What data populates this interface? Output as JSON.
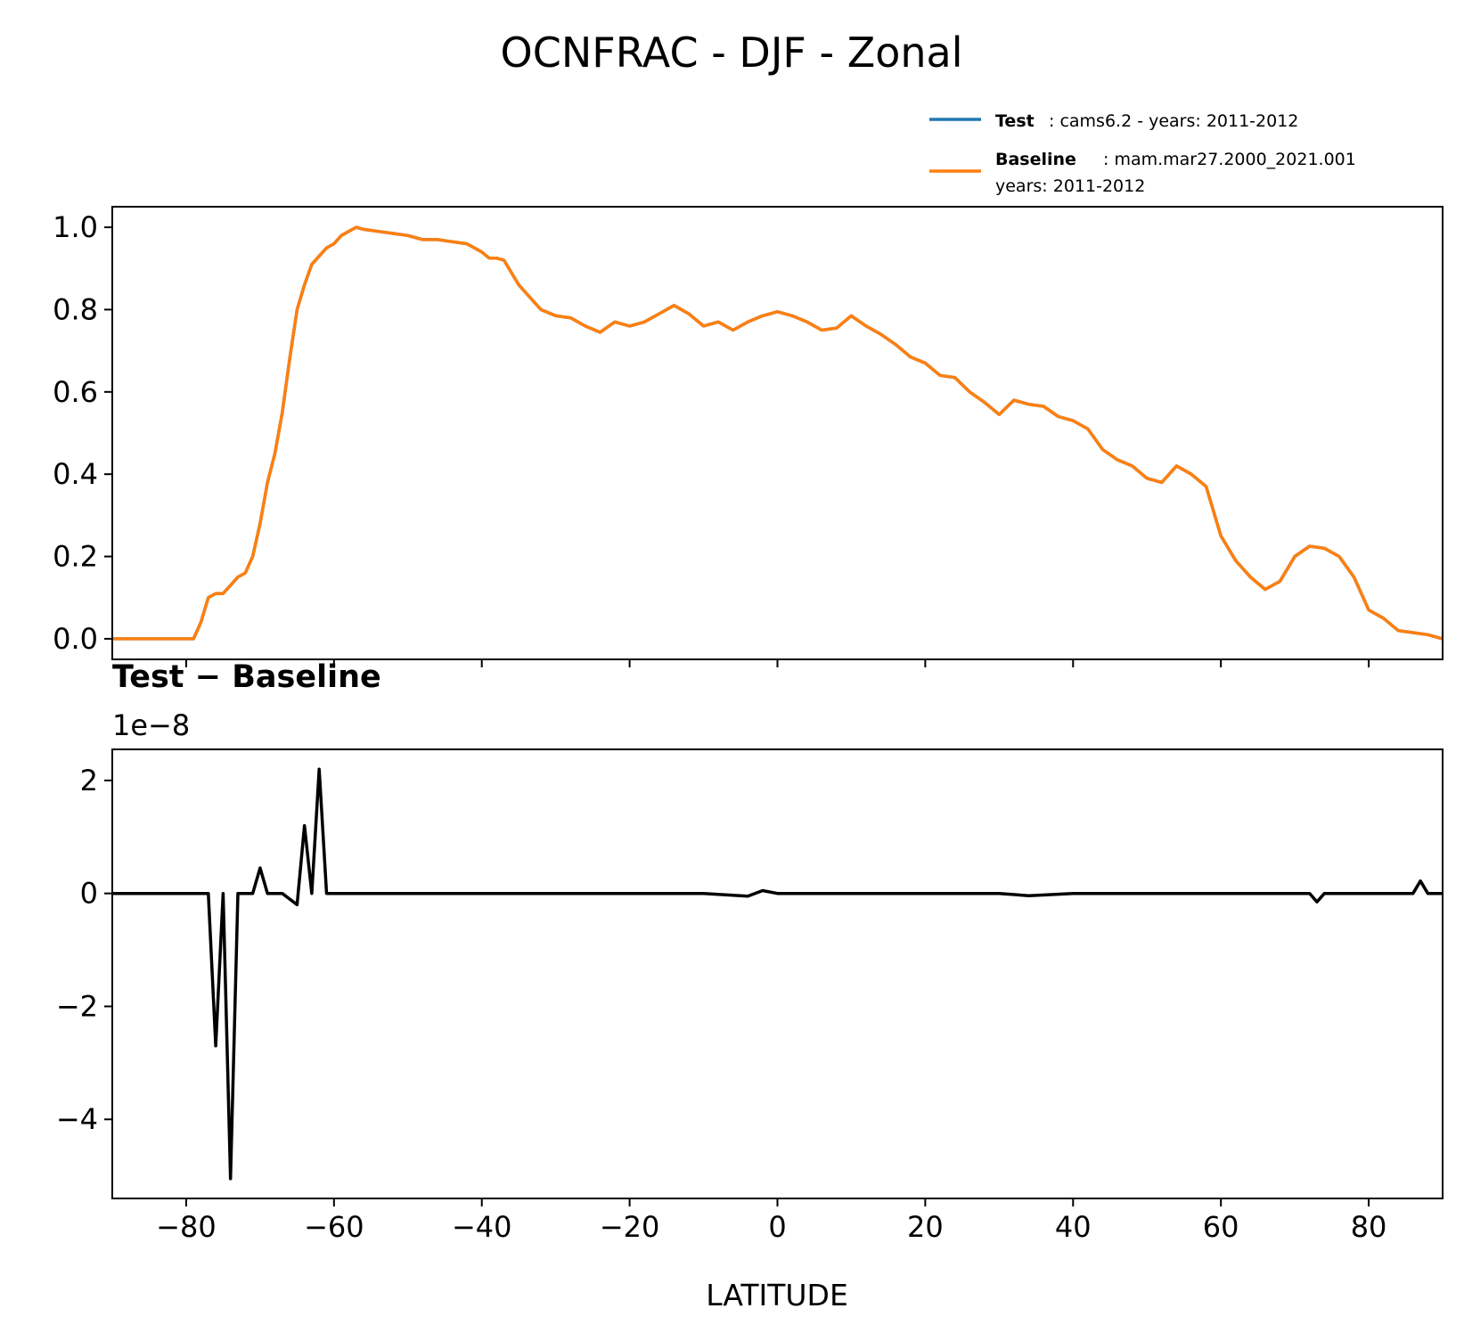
{
  "title": "OCNFRAC - DJF - Zonal",
  "legend": {
    "test": {
      "label": "Test",
      "text": ": cams6.2 - years: 2011-2012",
      "color": "#1f77b4"
    },
    "baseline": {
      "label": "Baseline",
      "text": ": mam.mar27.2000_2021.001",
      "text2": "years: 2011-2012",
      "color": "#ff7f0e"
    }
  },
  "chart_data": [
    {
      "type": "line",
      "title": "",
      "xlabel": "",
      "ylabel": "",
      "xlim": [
        -90,
        90
      ],
      "ylim": [
        -0.05,
        1.05
      ],
      "yticks": [
        0.0,
        0.2,
        0.4,
        0.6,
        0.8,
        1.0
      ],
      "ytick_labels": [
        "0.0",
        "0.2",
        "0.4",
        "0.6",
        "0.8",
        "1.0"
      ],
      "series": [
        {
          "name": "Test",
          "color": "#1f77b4",
          "x": [
            -90,
            -79,
            -78,
            -77,
            -76,
            -75,
            -74,
            -73,
            -72,
            -71,
            -70,
            -69,
            -68,
            -67,
            -66,
            -65,
            -64,
            -63,
            -62,
            -61,
            -60,
            -59,
            -58,
            -57,
            -56,
            -54,
            -52,
            -50,
            -48,
            -46,
            -44,
            -42,
            -40,
            -39,
            -38,
            -37,
            -36,
            -35,
            -34,
            -32,
            -30,
            -28,
            -26,
            -24,
            -22,
            -20,
            -18,
            -16,
            -14,
            -12,
            -10,
            -8,
            -6,
            -4,
            -2,
            0,
            2,
            4,
            6,
            8,
            10,
            12,
            14,
            16,
            18,
            20,
            22,
            24,
            26,
            28,
            30,
            32,
            34,
            36,
            38,
            40,
            42,
            44,
            46,
            48,
            50,
            52,
            54,
            56,
            58,
            60,
            62,
            64,
            66,
            68,
            70,
            72,
            74,
            76,
            78,
            80,
            82,
            84,
            86,
            88,
            90
          ],
          "values": [
            0.0,
            0.0,
            0.04,
            0.1,
            0.11,
            0.11,
            0.13,
            0.15,
            0.16,
            0.2,
            0.28,
            0.38,
            0.45,
            0.55,
            0.68,
            0.8,
            0.86,
            0.91,
            0.93,
            0.95,
            0.96,
            0.98,
            0.99,
            1.0,
            0.995,
            0.99,
            0.985,
            0.98,
            0.97,
            0.97,
            0.965,
            0.96,
            0.94,
            0.925,
            0.925,
            0.92,
            0.89,
            0.86,
            0.84,
            0.8,
            0.785,
            0.78,
            0.76,
            0.745,
            0.77,
            0.76,
            0.77,
            0.79,
            0.81,
            0.79,
            0.76,
            0.77,
            0.75,
            0.77,
            0.785,
            0.795,
            0.785,
            0.77,
            0.75,
            0.755,
            0.785,
            0.76,
            0.74,
            0.715,
            0.685,
            0.67,
            0.64,
            0.635,
            0.6,
            0.575,
            0.545,
            0.58,
            0.57,
            0.565,
            0.54,
            0.53,
            0.51,
            0.46,
            0.435,
            0.42,
            0.39,
            0.38,
            0.42,
            0.4,
            0.37,
            0.25,
            0.19,
            0.15,
            0.12,
            0.14,
            0.2,
            0.225,
            0.22,
            0.2,
            0.15,
            0.07,
            0.05,
            0.02,
            0.015,
            0.01,
            0.0
          ]
        },
        {
          "name": "Baseline",
          "color": "#ff7f0e",
          "x": [
            -90,
            -79,
            -78,
            -77,
            -76,
            -75,
            -74,
            -73,
            -72,
            -71,
            -70,
            -69,
            -68,
            -67,
            -66,
            -65,
            -64,
            -63,
            -62,
            -61,
            -60,
            -59,
            -58,
            -57,
            -56,
            -54,
            -52,
            -50,
            -48,
            -46,
            -44,
            -42,
            -40,
            -39,
            -38,
            -37,
            -36,
            -35,
            -34,
            -32,
            -30,
            -28,
            -26,
            -24,
            -22,
            -20,
            -18,
            -16,
            -14,
            -12,
            -10,
            -8,
            -6,
            -4,
            -2,
            0,
            2,
            4,
            6,
            8,
            10,
            12,
            14,
            16,
            18,
            20,
            22,
            24,
            26,
            28,
            30,
            32,
            34,
            36,
            38,
            40,
            42,
            44,
            46,
            48,
            50,
            52,
            54,
            56,
            58,
            60,
            62,
            64,
            66,
            68,
            70,
            72,
            74,
            76,
            78,
            80,
            82,
            84,
            86,
            88,
            90
          ],
          "values": [
            0.0,
            0.0,
            0.04,
            0.1,
            0.11,
            0.11,
            0.13,
            0.15,
            0.16,
            0.2,
            0.28,
            0.38,
            0.45,
            0.55,
            0.68,
            0.8,
            0.86,
            0.91,
            0.93,
            0.95,
            0.96,
            0.98,
            0.99,
            1.0,
            0.995,
            0.99,
            0.985,
            0.98,
            0.97,
            0.97,
            0.965,
            0.96,
            0.94,
            0.925,
            0.925,
            0.92,
            0.89,
            0.86,
            0.84,
            0.8,
            0.785,
            0.78,
            0.76,
            0.745,
            0.77,
            0.76,
            0.77,
            0.79,
            0.81,
            0.79,
            0.76,
            0.77,
            0.75,
            0.77,
            0.785,
            0.795,
            0.785,
            0.77,
            0.75,
            0.755,
            0.785,
            0.76,
            0.74,
            0.715,
            0.685,
            0.67,
            0.64,
            0.635,
            0.6,
            0.575,
            0.545,
            0.58,
            0.57,
            0.565,
            0.54,
            0.53,
            0.51,
            0.46,
            0.435,
            0.42,
            0.39,
            0.38,
            0.42,
            0.4,
            0.37,
            0.25,
            0.19,
            0.15,
            0.12,
            0.14,
            0.2,
            0.225,
            0.22,
            0.2,
            0.15,
            0.07,
            0.05,
            0.02,
            0.015,
            0.01,
            0.0
          ]
        }
      ]
    },
    {
      "type": "line",
      "title": "Test − Baseline",
      "offset_text": "1e−8",
      "xlabel": "LATITUDE",
      "ylabel": "",
      "xlim": [
        -90,
        90
      ],
      "ylim": [
        -5.4,
        2.55
      ],
      "xticks": [
        -80,
        -60,
        -40,
        -20,
        0,
        20,
        40,
        60,
        80
      ],
      "xtick_labels": [
        "−80",
        "−60",
        "−40",
        "−20",
        "0",
        "20",
        "40",
        "60",
        "80"
      ],
      "yticks": [
        -4,
        -2,
        0,
        2
      ],
      "ytick_labels": [
        "−4",
        "−2",
        "0",
        "2"
      ],
      "series": [
        {
          "name": "Test − Baseline",
          "color": "#000000",
          "x": [
            -90,
            -77,
            -76,
            -75,
            -74,
            -73,
            -72,
            -71,
            -70,
            -69,
            -67,
            -66,
            -65,
            -64,
            -63,
            -62,
            -61,
            -55,
            -50,
            -40,
            -30,
            -20,
            -10,
            -4,
            -2,
            0,
            2,
            6,
            10,
            20,
            30,
            34,
            40,
            50,
            60,
            70,
            72,
            73,
            74,
            76,
            80,
            86,
            87,
            88,
            90
          ],
          "values": [
            0,
            0,
            -2.7,
            0,
            -5.05,
            0,
            0,
            0,
            0.45,
            0,
            0,
            -0.1,
            -0.2,
            1.2,
            0,
            2.2,
            0,
            0,
            0,
            0,
            0,
            0,
            0,
            -0.05,
            0.05,
            0,
            0,
            0,
            0,
            0,
            0,
            -0.04,
            0,
            0,
            0,
            0,
            0,
            -0.15,
            0,
            0,
            0,
            0,
            0.22,
            0,
            0
          ]
        }
      ]
    }
  ]
}
